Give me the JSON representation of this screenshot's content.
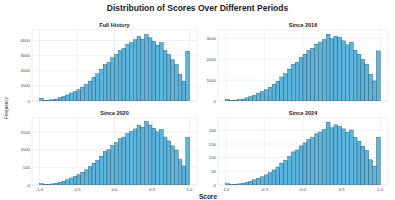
{
  "figure": {
    "title": "Distribution of Scores Over Different Periods",
    "x_label": "Score",
    "y_label": "Frequency"
  },
  "chart_data": [
    {
      "type": "histogram",
      "title": "Full History",
      "color": "#5ab4dc",
      "grid": true,
      "tick_labels": "y",
      "bins": [
        -1,
        -0.95,
        -0.9,
        -0.85,
        -0.8,
        -0.75,
        -0.7,
        -0.65,
        -0.6,
        -0.55,
        -0.5,
        -0.45,
        -0.4,
        -0.35,
        -0.3,
        -0.25,
        -0.2,
        -0.15,
        -0.1,
        -0.05,
        0,
        0.05,
        0.1,
        0.15,
        0.2,
        0.25,
        0.3,
        0.35,
        0.4,
        0.45,
        0.5,
        0.55,
        0.6,
        0.65,
        0.7,
        0.75,
        0.8,
        0.85,
        0.9,
        0.95,
        1
      ],
      "values": [
        180,
        50,
        60,
        90,
        130,
        220,
        310,
        400,
        530,
        620,
        750,
        920,
        1100,
        1320,
        1580,
        1800,
        2110,
        2420,
        2550,
        2860,
        3080,
        3340,
        3480,
        3740,
        3870,
        4050,
        4270,
        4090,
        4400,
        4180,
        3960,
        3700,
        3870,
        3340,
        3080,
        2730,
        2420,
        1760,
        1320,
        3300
      ],
      "xlim": [
        -1.1,
        1.1
      ],
      "xticks": [
        {
          "value": -1,
          "label": "-1.0"
        },
        -0.5,
        {
          "value": 0,
          "label": "0.0"
        },
        0.5,
        {
          "value": 1,
          "label": "1.0"
        }
      ],
      "ylim": [
        0,
        4700
      ],
      "yticks": [
        0,
        1000,
        2000,
        3000,
        4000
      ]
    },
    {
      "type": "histogram",
      "title": "Since 2016",
      "color": "#5ab4dc",
      "grid": true,
      "tick_labels": "y",
      "bins": [
        -1,
        -0.95,
        -0.9,
        -0.85,
        -0.8,
        -0.75,
        -0.7,
        -0.65,
        -0.6,
        -0.55,
        -0.5,
        -0.45,
        -0.4,
        -0.35,
        -0.3,
        -0.25,
        -0.2,
        -0.15,
        -0.1,
        -0.05,
        0,
        0.05,
        0.1,
        0.15,
        0.2,
        0.25,
        0.3,
        0.35,
        0.4,
        0.45,
        0.5,
        0.55,
        0.6,
        0.65,
        0.7,
        0.75,
        0.8,
        0.85,
        0.9,
        0.95,
        1
      ],
      "values": [
        80,
        30,
        40,
        60,
        90,
        150,
        210,
        280,
        380,
        450,
        540,
        660,
        800,
        950,
        1150,
        1310,
        1530,
        1760,
        1860,
        2080,
        2240,
        2430,
        2530,
        2720,
        2820,
        2950,
        3200,
        2980,
        3100,
        3040,
        2880,
        2690,
        2820,
        2430,
        2240,
        1990,
        1760,
        1280,
        960,
        2400
      ],
      "xlim": [
        -1.1,
        1.1
      ],
      "xticks": [
        {
          "value": -1,
          "label": "-1.0"
        },
        -0.5,
        {
          "value": 0,
          "label": "0.0"
        },
        0.5,
        {
          "value": 1,
          "label": "1.0"
        }
      ],
      "ylim": [
        0,
        3400
      ],
      "yticks": [
        0,
        1000,
        2000,
        3000
      ]
    },
    {
      "type": "histogram",
      "title": "Since 2020",
      "color": "#5ab4dc",
      "grid": true,
      "tick_labels": true,
      "bins": [
        -1,
        -0.95,
        -0.9,
        -0.85,
        -0.8,
        -0.75,
        -0.7,
        -0.65,
        -0.6,
        -0.55,
        -0.5,
        -0.45,
        -0.4,
        -0.35,
        -0.3,
        -0.25,
        -0.2,
        -0.15,
        -0.1,
        -0.05,
        0,
        0.05,
        0.1,
        0.15,
        0.2,
        0.25,
        0.3,
        0.35,
        0.4,
        0.45,
        0.5,
        0.55,
        0.6,
        0.65,
        0.7,
        0.75,
        0.8,
        0.85,
        0.9,
        0.95,
        1
      ],
      "values": [
        40,
        15,
        20,
        30,
        50,
        80,
        110,
        150,
        200,
        240,
        290,
        360,
        430,
        520,
        620,
        700,
        820,
        950,
        1000,
        1120,
        1200,
        1310,
        1360,
        1460,
        1520,
        1590,
        1700,
        1640,
        1800,
        1700,
        1610,
        1510,
        1580,
        1360,
        1250,
        1110,
        990,
        720,
        540,
        1350
      ],
      "xlim": [
        -1.1,
        1.1
      ],
      "xticks": [
        {
          "value": -1,
          "label": "-1.0"
        },
        -0.5,
        {
          "value": 0,
          "label": "0.0"
        },
        0.5,
        {
          "value": 1,
          "label": "1.0"
        }
      ],
      "ylim": [
        0,
        1900
      ],
      "yticks": [
        0,
        500,
        1000,
        1500
      ]
    },
    {
      "type": "histogram",
      "title": "Since 2024",
      "color": "#5ab4dc",
      "grid": true,
      "tick_labels": true,
      "bins": [
        -1,
        -0.95,
        -0.9,
        -0.85,
        -0.8,
        -0.75,
        -0.7,
        -0.65,
        -0.6,
        -0.55,
        -0.5,
        -0.45,
        -0.4,
        -0.35,
        -0.3,
        -0.25,
        -0.2,
        -0.15,
        -0.1,
        -0.05,
        0,
        0.05,
        0.1,
        0.15,
        0.2,
        0.25,
        0.3,
        0.35,
        0.4,
        0.45,
        0.5,
        0.55,
        0.6,
        0.65,
        0.7,
        0.75,
        0.8,
        0.85,
        0.9,
        0.95,
        1
      ],
      "values": [
        5,
        2,
        3,
        4,
        6,
        10,
        14,
        19,
        25,
        30,
        37,
        45,
        55,
        66,
        80,
        90,
        105,
        121,
        128,
        143,
        154,
        167,
        174,
        187,
        194,
        203,
        230,
        209,
        220,
        214,
        205,
        193,
        201,
        174,
        160,
        142,
        126,
        92,
        69,
        175
      ],
      "xlim": [
        -1.1,
        1.1
      ],
      "xticks": [
        {
          "value": -1,
          "label": "-1.0"
        },
        -0.5,
        {
          "value": 0,
          "label": "0.0"
        },
        0.5,
        {
          "value": 1,
          "label": "1.0"
        }
      ],
      "ylim": [
        0,
        245
      ],
      "yticks": [
        0,
        50,
        100,
        150,
        200
      ]
    }
  ]
}
